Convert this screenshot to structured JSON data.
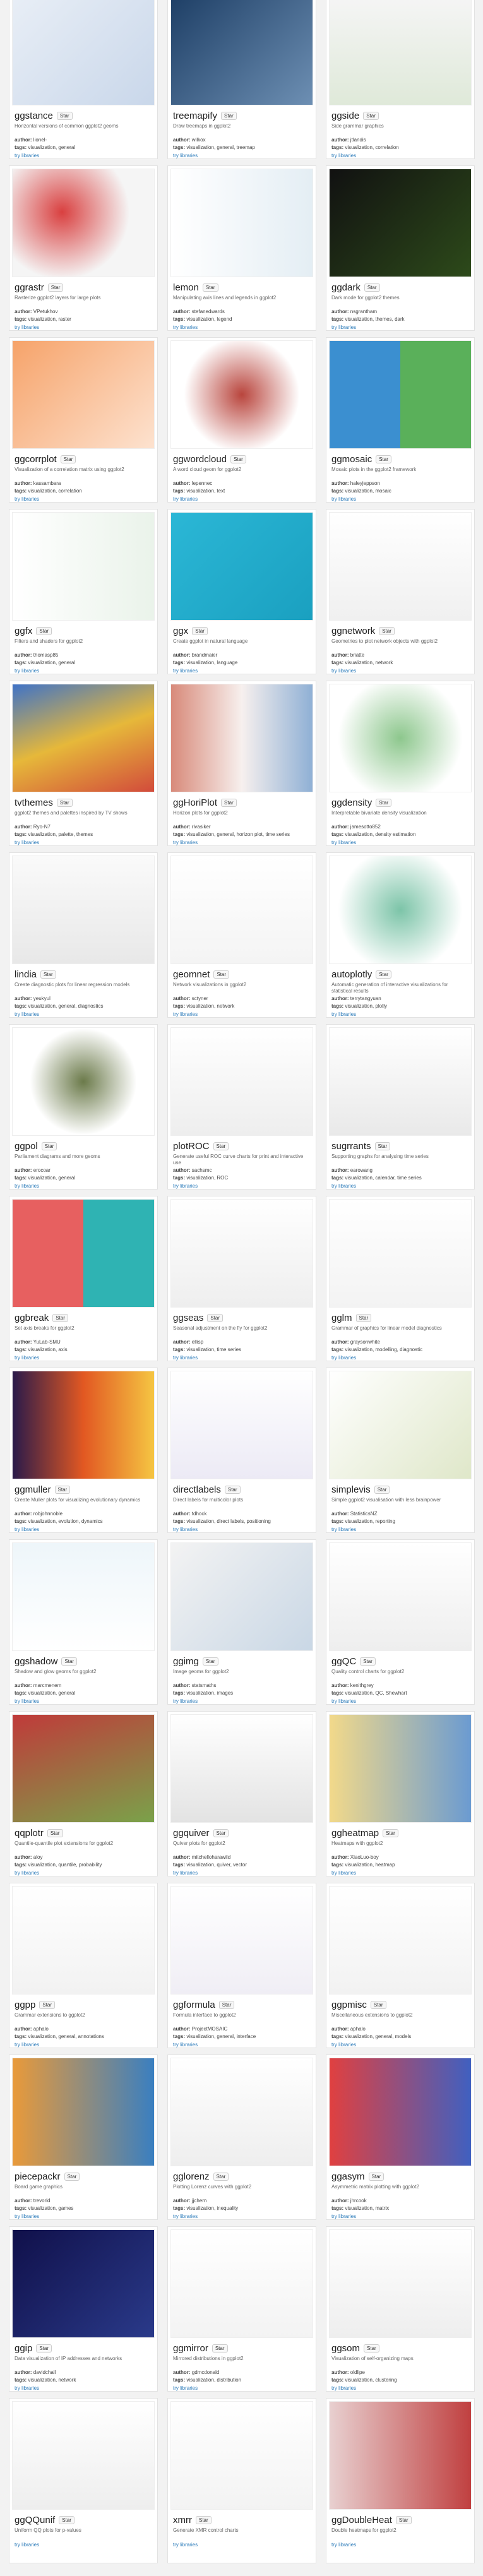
{
  "labels": {
    "star": "Star",
    "author": "author:",
    "tags": "tags:",
    "link": "try libraries"
  },
  "cards": [
    {
      "name": "ggstance",
      "description": "Horizontal versions of common ggplot2 geoms",
      "author": "lionel-",
      "tags": "visualization, general"
    },
    {
      "name": "treemapify",
      "description": "Draw treemaps in ggplot2",
      "author": "wilkox",
      "tags": "visualization, general, treemap"
    },
    {
      "name": "ggside",
      "description": "Side grammar graphics",
      "author": "jtlandis",
      "tags": "visualization, correlation"
    },
    {
      "name": "ggrastr",
      "description": "Rasterize ggplot2 layers for large plots",
      "author": "VPetukhov",
      "tags": "visualization, raster"
    },
    {
      "name": "lemon",
      "description": "Manipulating axis lines and legends in ggplot2",
      "author": "stefanedwards",
      "tags": "visualization, legend"
    },
    {
      "name": "ggdark",
      "description": "Dark mode for ggplot2 themes",
      "author": "nsgrantham",
      "tags": "visualization, themes, dark"
    },
    {
      "name": "ggcorrplot",
      "description": "Visualization of a correlation matrix using ggplot2",
      "author": "kassambara",
      "tags": "visualization, correlation"
    },
    {
      "name": "ggwordcloud",
      "description": "A word cloud geom for ggplot2",
      "author": "lepennec",
      "tags": "visualization, text"
    },
    {
      "name": "ggmosaic",
      "description": "Mosaic plots in the ggplot2 framework",
      "author": "haleyjeppson",
      "tags": "visualization, mosaic"
    },
    {
      "name": "ggfx",
      "description": "Filters and shaders for ggplot2",
      "author": "thomasp85",
      "tags": "visualization, general"
    },
    {
      "name": "ggx",
      "description": "Create ggplot in natural language",
      "author": "brandmaier",
      "tags": "visualization, language"
    },
    {
      "name": "ggnetwork",
      "description": "Geometries to plot network objects with ggplot2",
      "author": "briatte",
      "tags": "visualization, network"
    },
    {
      "name": "tvthemes",
      "description": "ggplot2 themes and palettes inspired by TV shows",
      "author": "Ryo-N7",
      "tags": "visualization, palette, themes"
    },
    {
      "name": "ggHoriPlot",
      "description": "Horizon plots for ggplot2",
      "author": "rivasiker",
      "tags": "visualization, general, horizon plot, time series"
    },
    {
      "name": "ggdensity",
      "description": "Interpretable bivariate density visualization",
      "author": "jamesotto852",
      "tags": "visualization, density estimation"
    },
    {
      "name": "lindia",
      "description": "Create diagnostic plots for linear regression models",
      "author": "yeukyul",
      "tags": "visualization, general, diagnostics"
    },
    {
      "name": "geomnet",
      "description": "Network visualizations in ggplot2",
      "author": "sctyner",
      "tags": "visualization, network"
    },
    {
      "name": "autoplotly",
      "description": "Automatic generation of interactive visualizations for statistical results",
      "author": "terrytangyuan",
      "tags": "visualization, plotly"
    },
    {
      "name": "ggpol",
      "description": "Parliament diagrams and more geoms",
      "author": "erocoar",
      "tags": "visualization, general"
    },
    {
      "name": "plotROC",
      "description": "Generate useful ROC curve charts for print and interactive use",
      "author": "sachsmc",
      "tags": "visualization, ROC"
    },
    {
      "name": "sugrrants",
      "description": "Supporting graphs for analysing time series",
      "author": "earowang",
      "tags": "visualization, calendar, time series"
    },
    {
      "name": "ggbreak",
      "description": "Set axis breaks for ggplot2",
      "author": "YuLab-SMU",
      "tags": "visualization, axis"
    },
    {
      "name": "ggseas",
      "description": "Seasonal adjustment on the fly for ggplot2",
      "author": "ellisp",
      "tags": "visualization, time series"
    },
    {
      "name": "gglm",
      "description": "Grammar of graphics for linear model diagnostics",
      "author": "graysonwhite",
      "tags": "visualization, modelling, diagnostic"
    },
    {
      "name": "ggmuller",
      "description": "Create Muller plots for visualizing evolutionary dynamics",
      "author": "robjohnnoble",
      "tags": "visualization, evolution, dynamics"
    },
    {
      "name": "directlabels",
      "description": "Direct labels for multicolor plots",
      "author": "tdhock",
      "tags": "visualization, direct labels, positioning"
    },
    {
      "name": "simplevis",
      "description": "Simple ggplot2 visualisation with less brainpower",
      "author": "StatisticsNZ",
      "tags": "visualization, reporting"
    },
    {
      "name": "ggshadow",
      "description": "Shadow and glow geoms for ggplot2",
      "author": "marcmenem",
      "tags": "visualization, general"
    },
    {
      "name": "ggimg",
      "description": "Image geoms for ggplot2",
      "author": "statsmaths",
      "tags": "visualization, images"
    },
    {
      "name": "ggQC",
      "description": "Quality control charts for ggplot2",
      "author": "kenithgrey",
      "tags": "visualization, QC, Shewhart"
    },
    {
      "name": "qqplotr",
      "description": "Quantile-quantile plot extensions for ggplot2",
      "author": "aloy",
      "tags": "visualization, quantile, probability"
    },
    {
      "name": "ggquiver",
      "description": "Quiver plots for ggplot2",
      "author": "mitchelloharawild",
      "tags": "visualization, quiver, vector"
    },
    {
      "name": "ggheatmap",
      "description": "Heatmaps with ggplot2",
      "author": "XiaoLuo-boy",
      "tags": "visualization, heatmap"
    },
    {
      "name": "ggpp",
      "description": "Grammar extensions to ggplot2",
      "author": "aphalo",
      "tags": "visualization, general, annotations"
    },
    {
      "name": "ggformula",
      "description": "Formula interface to ggplot2",
      "author": "ProjectMOSAIC",
      "tags": "visualization, general, interface"
    },
    {
      "name": "ggpmisc",
      "description": "Miscellaneous extensions to ggplot2",
      "author": "aphalo",
      "tags": "visualization, general, models"
    },
    {
      "name": "piecepackr",
      "description": "Board game graphics",
      "author": "trevorld",
      "tags": "visualization, games"
    },
    {
      "name": "gglorenz",
      "description": "Plotting Lorenz curves with ggplot2",
      "author": "jjchern",
      "tags": "visualization, inequality"
    },
    {
      "name": "ggasym",
      "description": "Asymmetric matrix plotting with ggplot2",
      "author": "jhrcook",
      "tags": "visualization, matrix"
    },
    {
      "name": "ggip",
      "description": "Data visualization of IP addresses and networks",
      "author": "davidchall",
      "tags": "visualization, network"
    },
    {
      "name": "ggmirror",
      "description": "Mirrored distributions in ggplot2",
      "author": "gdmcdonald",
      "tags": "visualization, distribution"
    },
    {
      "name": "ggsom",
      "description": "Visualization of self-organizing maps",
      "author": "oldlipe",
      "tags": "visualization, clustering"
    },
    {
      "name": "ggQQunif",
      "description": "Uniform QQ plots for p-values",
      "author": "",
      "tags": ""
    },
    {
      "name": "xmrr",
      "description": "Generate XMR control charts",
      "author": "",
      "tags": ""
    },
    {
      "name": "ggDoubleHeat",
      "description": "Double heatmaps for ggplot2",
      "author": "",
      "tags": ""
    }
  ]
}
